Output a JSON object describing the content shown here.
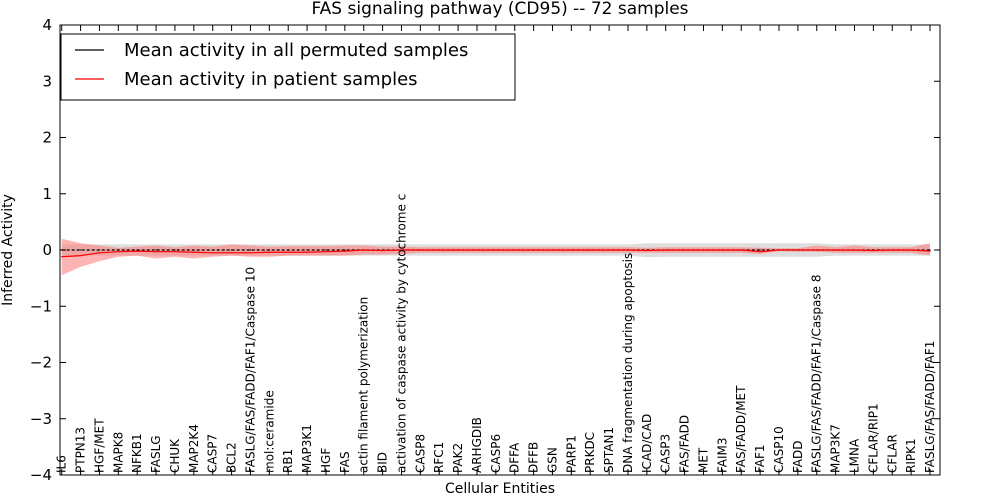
{
  "chart_data": {
    "type": "line",
    "title": "FAS signaling pathway (CD95) -- 72 samples",
    "xlabel": "Cellular Entities",
    "ylabel": "Inferred Activity",
    "ylim": [
      -4,
      4
    ],
    "yticks": [
      -4,
      -3,
      -2,
      -1,
      0,
      1,
      2,
      3,
      4
    ],
    "ytick_labels": [
      "−4",
      "−3",
      "−2",
      "−1",
      "0",
      "1",
      "2",
      "3",
      "4"
    ],
    "grid": false,
    "legend_position": "top-left",
    "categories": [
      "IL6",
      "PTPN13",
      "HGF/MET",
      "MAPK8",
      "NFKB1",
      "FASLG",
      "CHUK",
      "MAP2K4",
      "CASP7",
      "BCL2",
      "FASLG/FAS/FADD/FAF1/Caspase 10",
      "mol:ceramide",
      "RB1",
      "MAP3K1",
      "HGF",
      "FAS",
      "actin filament polymerization",
      "BID",
      "activation of caspase activity by cytochrome c",
      "CASP8",
      "RFC1",
      "PAK2",
      "ARHGDIB",
      "CASP6",
      "DFFA",
      "DFFB",
      "GSN",
      "PARP1",
      "PRKDC",
      "SPTAN1",
      "DNA fragmentation during apoptosis",
      "ICAD/CAD",
      "CASP3",
      "FAS/FADD",
      "MET",
      "FAIM3",
      "FAS/FADD/MET",
      "FAF1",
      "CASP10",
      "FADD",
      "FASLG/FAS/FADD/FAF1/Caspase 8",
      "MAP3K7",
      "LMNA",
      "CFLAR/RIP1",
      "CFLAR",
      "RIPK1",
      "FASLG/FAS/FADD/FAF1"
    ],
    "series": [
      {
        "name": "Mean activity in all permuted samples",
        "color": "#000000",
        "band_color": "#c8c8c8",
        "values": [
          0.0,
          0.0,
          0.0,
          0.0,
          0.0,
          0.0,
          0.0,
          0.0,
          0.0,
          0.0,
          0.0,
          0.0,
          0.0,
          0.0,
          0.0,
          0.0,
          0.0,
          0.0,
          0.0,
          0.0,
          0.0,
          0.0,
          0.0,
          0.0,
          0.0,
          0.0,
          0.0,
          0.0,
          0.0,
          0.0,
          0.0,
          0.0,
          0.0,
          0.0,
          0.0,
          0.0,
          0.0,
          0.0,
          0.0,
          0.0,
          0.0,
          0.0,
          0.0,
          0.0,
          0.0,
          0.0,
          0.0
        ],
        "band_lower": [
          -0.1,
          -0.1,
          -0.1,
          -0.1,
          -0.1,
          -0.1,
          -0.1,
          -0.1,
          -0.1,
          -0.1,
          -0.1,
          -0.1,
          -0.1,
          -0.1,
          -0.1,
          -0.1,
          -0.1,
          -0.1,
          -0.1,
          -0.1,
          -0.1,
          -0.1,
          -0.1,
          -0.1,
          -0.1,
          -0.1,
          -0.1,
          -0.1,
          -0.1,
          -0.1,
          -0.1,
          -0.13,
          -0.12,
          -0.12,
          -0.12,
          -0.12,
          -0.12,
          -0.12,
          -0.12,
          -0.12,
          -0.12,
          -0.1,
          -0.1,
          -0.1,
          -0.1,
          -0.1,
          -0.1
        ],
        "band_upper": [
          0.1,
          0.1,
          0.1,
          0.1,
          0.1,
          0.1,
          0.1,
          0.1,
          0.1,
          0.1,
          0.1,
          0.1,
          0.1,
          0.1,
          0.1,
          0.1,
          0.1,
          0.1,
          0.1,
          0.1,
          0.1,
          0.1,
          0.1,
          0.1,
          0.1,
          0.1,
          0.1,
          0.1,
          0.1,
          0.1,
          0.1,
          0.12,
          0.12,
          0.12,
          0.12,
          0.12,
          0.12,
          0.12,
          0.12,
          0.12,
          0.12,
          0.1,
          0.1,
          0.1,
          0.1,
          0.1,
          0.1
        ]
      },
      {
        "name": "Mean activity in patient samples",
        "color": "#ff0000",
        "band_color": "#ff7777",
        "values": [
          -0.12,
          -0.1,
          -0.05,
          -0.03,
          -0.02,
          -0.03,
          -0.03,
          -0.04,
          -0.05,
          -0.05,
          -0.05,
          -0.04,
          -0.04,
          -0.04,
          -0.03,
          -0.02,
          0.0,
          -0.01,
          0.0,
          0.0,
          0.0,
          0.0,
          0.0,
          0.0,
          0.0,
          0.0,
          0.0,
          0.0,
          0.0,
          0.0,
          0.0,
          -0.01,
          0.0,
          0.0,
          0.0,
          0.0,
          0.0,
          -0.03,
          0.0,
          0.0,
          0.0,
          0.0,
          0.0,
          -0.01,
          0.0,
          0.0,
          -0.02
        ],
        "band_lower": [
          -0.45,
          -0.3,
          -0.2,
          -0.12,
          -0.1,
          -0.15,
          -0.12,
          -0.15,
          -0.12,
          -0.1,
          -0.12,
          -0.12,
          -0.1,
          -0.1,
          -0.1,
          -0.1,
          -0.08,
          -0.08,
          -0.07,
          -0.05,
          -0.05,
          -0.05,
          -0.05,
          -0.05,
          -0.05,
          -0.05,
          -0.05,
          -0.05,
          -0.05,
          -0.05,
          -0.05,
          -0.05,
          -0.05,
          -0.05,
          -0.05,
          -0.05,
          -0.05,
          -0.07,
          -0.02,
          -0.03,
          -0.03,
          -0.05,
          -0.05,
          -0.05,
          -0.05,
          -0.05,
          -0.1
        ],
        "band_upper": [
          0.2,
          0.12,
          0.08,
          0.04,
          0.06,
          0.08,
          0.05,
          0.08,
          0.06,
          0.1,
          0.08,
          0.06,
          0.07,
          0.07,
          0.07,
          0.08,
          0.08,
          0.06,
          0.06,
          0.05,
          0.05,
          0.05,
          0.05,
          0.05,
          0.05,
          0.05,
          0.05,
          0.05,
          0.05,
          0.05,
          0.05,
          0.04,
          0.05,
          0.05,
          0.05,
          0.05,
          0.05,
          0.04,
          0.03,
          0.03,
          0.08,
          0.05,
          0.08,
          0.05,
          0.05,
          0.05,
          0.12
        ]
      }
    ]
  }
}
